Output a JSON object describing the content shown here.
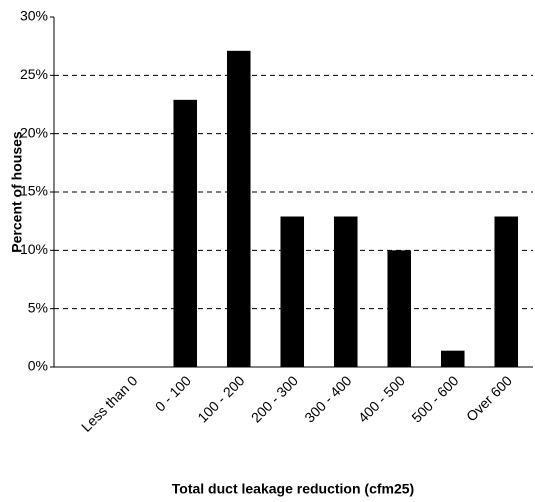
{
  "chart_data": {
    "type": "bar",
    "xlabel": "Total duct leakage reduction (cfm25)",
    "ylabel": "Percent of houses",
    "categories": [
      "Less than 0",
      "0 - 100",
      "100 - 200",
      "200 - 300",
      "300 - 400",
      "400 - 500",
      "500 - 600",
      "Over 600"
    ],
    "values": [
      0,
      22.9,
      27.1,
      12.9,
      12.9,
      10,
      1.4,
      12.9
    ],
    "color": "#000000",
    "ylim": [
      0,
      30
    ],
    "yticks": [
      {
        "value": 0,
        "label": "0%"
      },
      {
        "value": 5,
        "label": "5%"
      },
      {
        "value": 10,
        "label": "10%"
      },
      {
        "value": 15,
        "label": "15%"
      },
      {
        "value": 20,
        "label": "20%"
      },
      {
        "value": 25,
        "label": "25%"
      },
      {
        "value": 30,
        "label": "30%"
      }
    ],
    "grid": true
  }
}
